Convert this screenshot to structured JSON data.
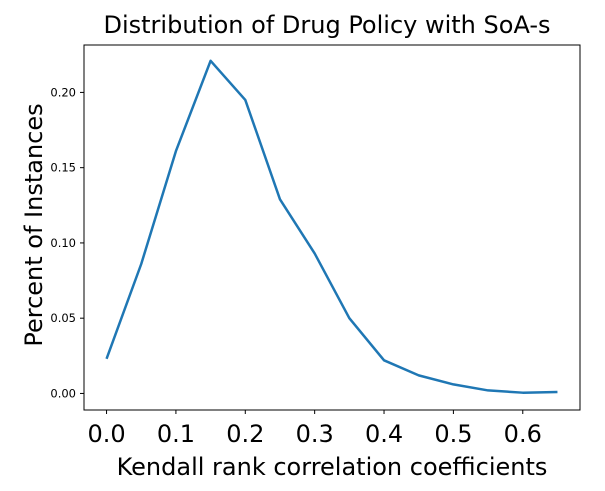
{
  "chart_data": {
    "type": "line",
    "title": "Distribution of Drug Policy with SoA-s",
    "xlabel": "Kendall rank correlation coefficients",
    "ylabel": "Percent of Instances",
    "xlim": [
      -0.0325,
      0.6825
    ],
    "ylim": [
      -0.011,
      0.2315
    ],
    "xticks": [
      0.0,
      0.1,
      0.2,
      0.3,
      0.4,
      0.5,
      0.6
    ],
    "xtick_labels": [
      "0.0",
      "0.1",
      "0.2",
      "0.3",
      "0.4",
      "0.5",
      "0.6"
    ],
    "yticks": [
      0.0,
      0.05,
      0.1,
      0.15,
      0.2
    ],
    "ytick_labels": [
      "0.00",
      "0.05",
      "0.10",
      "0.15",
      "0.20"
    ],
    "grid": false,
    "legend": "none",
    "line_color": "#1f77b4",
    "series": [
      {
        "x": [
          0.0,
          0.05,
          0.1,
          0.15,
          0.2,
          0.25,
          0.3,
          0.35,
          0.4,
          0.45,
          0.5,
          0.55,
          0.6,
          0.65
        ],
        "values": [
          0.023,
          0.086,
          0.161,
          0.221,
          0.195,
          0.129,
          0.093,
          0.05,
          0.022,
          0.012,
          0.006,
          0.002,
          0.0005,
          0.001
        ]
      }
    ]
  }
}
